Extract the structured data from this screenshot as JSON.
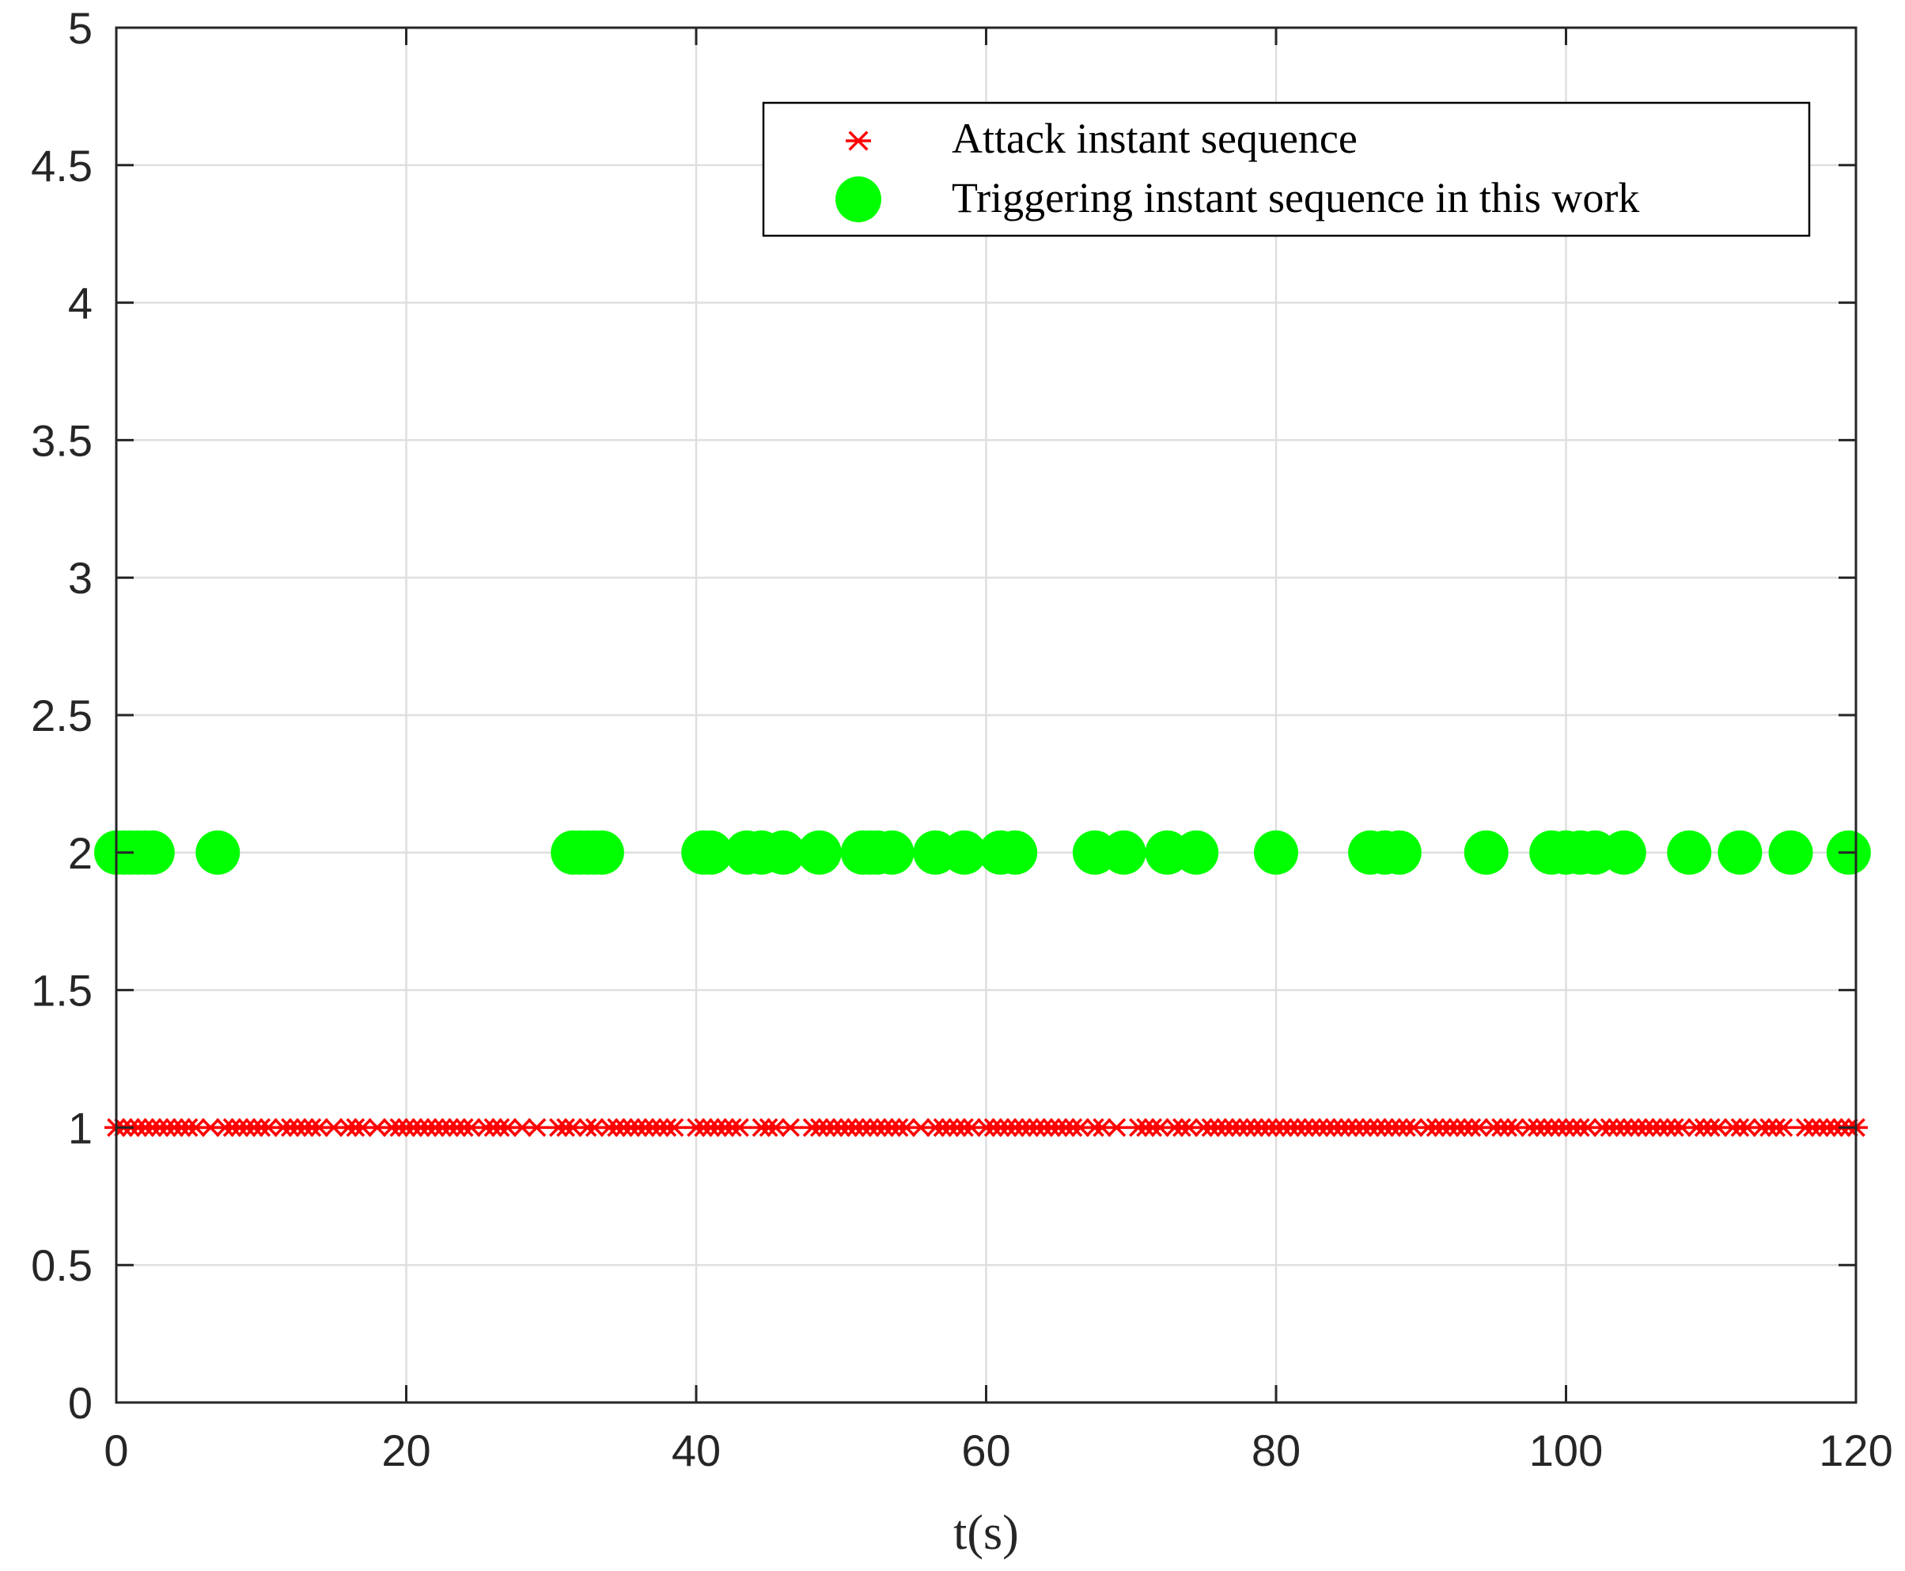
{
  "chart_data": {
    "type": "scatter",
    "xlabel": "t(s)",
    "ylabel": "",
    "xlim": [
      0,
      120
    ],
    "ylim": [
      0,
      5
    ],
    "xticks": [
      0,
      20,
      40,
      60,
      80,
      100,
      120
    ],
    "yticks": [
      0,
      0.5,
      1,
      1.5,
      2,
      2.5,
      3,
      3.5,
      4,
      4.5,
      5
    ],
    "xtick_labels": [
      "0",
      "20",
      "40",
      "60",
      "80",
      "100",
      "120"
    ],
    "ytick_labels": [
      "0",
      "0.5",
      "1",
      "1.5",
      "2",
      "2.5",
      "3",
      "3.5",
      "4",
      "4.5",
      "5"
    ],
    "grid": true,
    "legend_position": "top-right",
    "series": [
      {
        "name": "Attack instant sequence",
        "marker": "asterisk",
        "color": "#ff0000",
        "y": 1,
        "x": [
          0,
          0.5,
          1,
          1.5,
          2,
          2.5,
          3,
          3.5,
          4,
          4.5,
          5,
          5.5,
          6.5,
          7.5,
          8,
          8.5,
          9,
          9.5,
          10,
          10.5,
          11.5,
          12,
          12.5,
          13,
          13.5,
          14,
          15,
          16,
          16.5,
          17,
          18,
          19,
          19.5,
          20,
          20.5,
          21,
          21.5,
          22,
          22.5,
          23,
          23.5,
          24,
          24.5,
          25.5,
          26,
          26.5,
          27,
          28,
          29,
          30.5,
          31,
          31.5,
          32.5,
          33,
          34,
          34.5,
          35,
          35.5,
          36,
          36.5,
          37,
          37.5,
          38,
          38.5,
          40,
          40.5,
          41,
          41.5,
          42,
          42.5,
          43,
          44.5,
          45,
          45.5,
          46.5,
          48,
          48.5,
          49,
          49.5,
          50,
          50.5,
          51,
          51.5,
          52,
          52.5,
          53,
          53.5,
          54,
          54.5,
          55.5,
          56.5,
          57,
          57.5,
          58,
          58.5,
          59,
          60,
          60.5,
          61,
          61.5,
          62,
          62.5,
          63,
          63.5,
          64,
          64.5,
          65,
          65.5,
          66,
          66.5,
          67.5,
          68,
          69,
          70.5,
          71,
          71.5,
          72,
          73,
          73.5,
          74,
          75,
          75.5,
          76,
          76.5,
          77,
          77.5,
          78,
          78.5,
          79,
          79.5,
          80,
          80.5,
          81,
          81.5,
          82,
          82.5,
          83,
          83.5,
          84,
          84.5,
          85,
          85.5,
          86,
          86.5,
          87,
          87.5,
          88,
          88.5,
          89,
          89.5,
          90.5,
          91,
          91.5,
          92,
          92.5,
          93,
          93.5,
          94,
          95,
          95.5,
          96,
          96.5,
          97.5,
          98,
          98.5,
          99,
          99.5,
          100,
          100.5,
          101,
          101.5,
          102.5,
          103,
          103.5,
          104,
          104.5,
          105,
          105.5,
          106,
          106.5,
          107,
          107.5,
          108,
          109,
          109.5,
          110,
          110.5,
          111.5,
          112,
          112.5,
          113.5,
          114,
          114.5,
          115,
          116.5,
          117,
          117.5,
          118,
          118.5,
          119,
          119.5,
          120
        ]
      },
      {
        "name": "Triggering instant sequence in this work",
        "marker": "filled-circle",
        "color": "#00ff00",
        "y": 2,
        "x": [
          0,
          0.5,
          1,
          1.5,
          2,
          2.5,
          7,
          31.5,
          32,
          32.5,
          33,
          33.5,
          40.5,
          41,
          43.5,
          44.5,
          46,
          48.5,
          51.5,
          52,
          52.5,
          53.5,
          56.5,
          58.5,
          61,
          62,
          67.5,
          69.5,
          72.5,
          74.5,
          80,
          86.5,
          87.5,
          88.5,
          94.5,
          99,
          100,
          101,
          102,
          104,
          108.5,
          112,
          115.5,
          119.5
        ]
      }
    ]
  }
}
